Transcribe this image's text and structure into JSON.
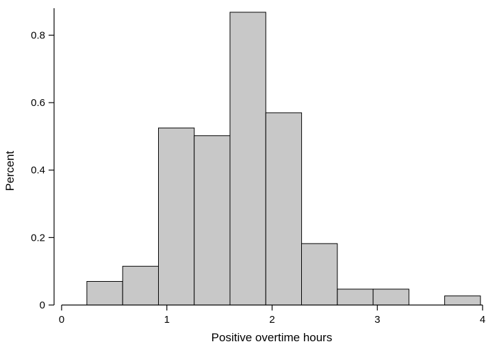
{
  "chart_data": {
    "type": "bar",
    "title": "",
    "xlabel": "Positive overtime hours",
    "ylabel": "Percent",
    "xlim": [
      0,
      4
    ],
    "ylim": [
      0,
      0.88
    ],
    "x_ticks": [
      0,
      1,
      2,
      3,
      4
    ],
    "x_tick_labels": [
      "0",
      "1",
      "2",
      "3",
      "4"
    ],
    "y_ticks": [
      0,
      0.2,
      0.4,
      0.6,
      0.8
    ],
    "y_tick_labels": [
      "0",
      "0.2",
      "0.4",
      "0.6",
      "0.8"
    ],
    "grid": false,
    "bar_color": "#c8c8c8",
    "edge_color": "#000000",
    "bins": [
      {
        "x0": 0.24,
        "x1": 0.58,
        "value": 0.07
      },
      {
        "x0": 0.58,
        "x1": 0.92,
        "value": 0.115
      },
      {
        "x0": 0.92,
        "x1": 1.26,
        "value": 0.525
      },
      {
        "x0": 1.26,
        "x1": 1.6,
        "value": 0.502
      },
      {
        "x0": 1.6,
        "x1": 1.94,
        "value": 0.868
      },
      {
        "x0": 1.94,
        "x1": 2.28,
        "value": 0.57
      },
      {
        "x0": 2.28,
        "x1": 2.62,
        "value": 0.182
      },
      {
        "x0": 2.62,
        "x1": 2.96,
        "value": 0.047
      },
      {
        "x0": 2.96,
        "x1": 3.3,
        "value": 0.047
      },
      {
        "x0": 3.64,
        "x1": 3.98,
        "value": 0.027
      }
    ]
  }
}
